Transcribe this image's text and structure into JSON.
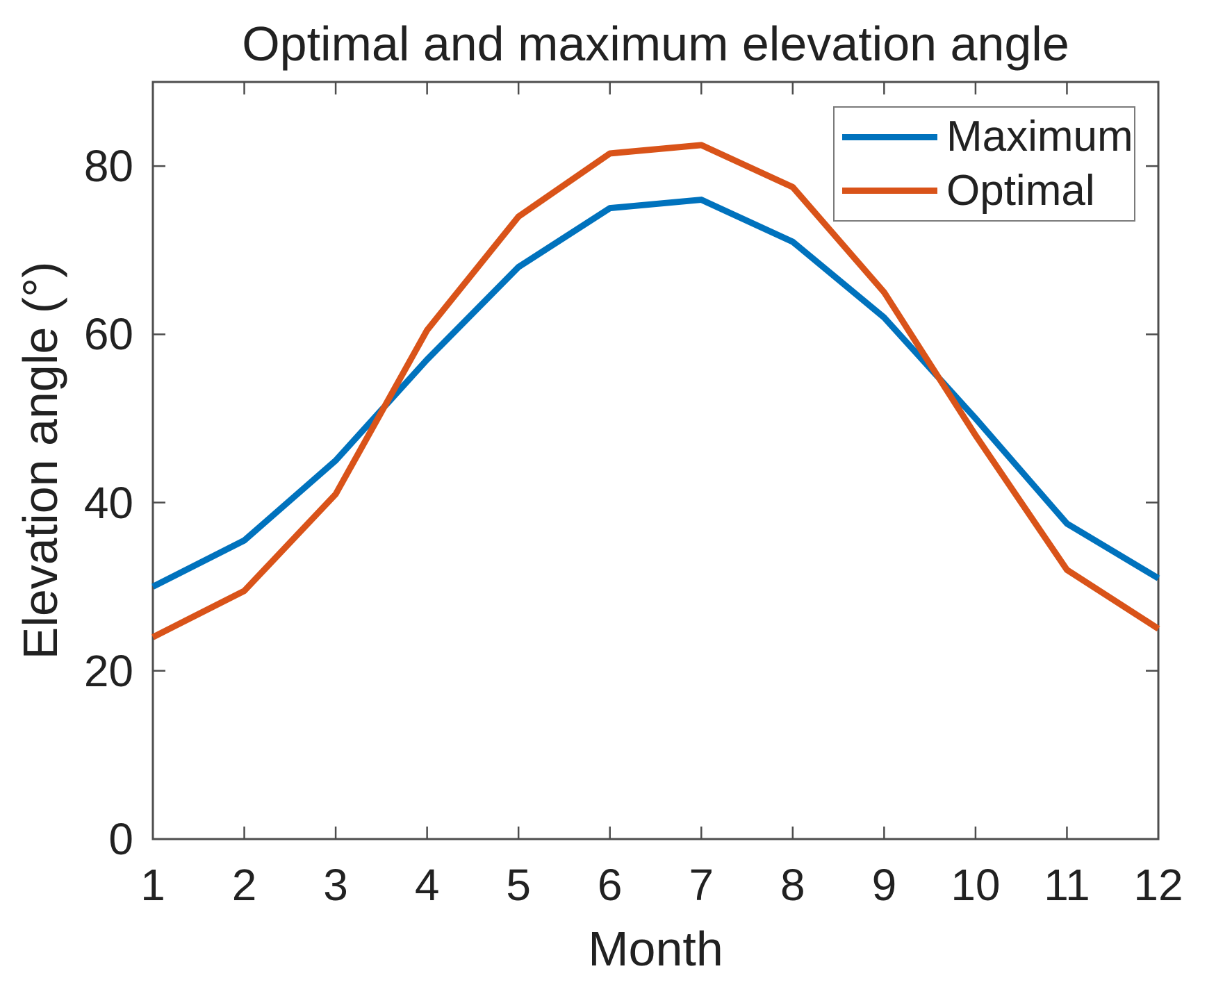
{
  "figure": {
    "title": "Optimal and maximum elevation angle",
    "x_label": "Month",
    "y_label": "Elevation angle (°)"
  },
  "legend": {
    "entries": [
      {
        "label": "Maximum",
        "color": "#0072BD"
      },
      {
        "label": "Optimal",
        "color": "#D95319"
      }
    ]
  },
  "style": {
    "axis_color": "#4d4d4d",
    "text_color": "#212121",
    "background": "#ffffff"
  },
  "chart_data": {
    "type": "line",
    "title": "Optimal and maximum elevation angle",
    "xlabel": "Month",
    "ylabel": "Elevation angle (°)",
    "x": [
      1,
      2,
      3,
      4,
      5,
      6,
      7,
      8,
      9,
      10,
      11,
      12
    ],
    "series": [
      {
        "name": "Maximum",
        "color": "#0072BD",
        "values": [
          30,
          35.5,
          45,
          57,
          68,
          75,
          76,
          71,
          62,
          50,
          37.5,
          31
        ]
      },
      {
        "name": "Optimal",
        "color": "#D95319",
        "values": [
          24,
          29.5,
          41,
          60.5,
          74,
          81.5,
          82.5,
          77.5,
          65,
          48,
          32,
          25
        ]
      }
    ],
    "xlim": [
      1,
      12
    ],
    "ylim": [
      0,
      90
    ],
    "x_ticks": [
      1,
      2,
      3,
      4,
      5,
      6,
      7,
      8,
      9,
      10,
      11,
      12
    ],
    "y_ticks": [
      0,
      20,
      40,
      60,
      80
    ],
    "grid": false,
    "legend_position": "top-right",
    "line_width": 9
  }
}
